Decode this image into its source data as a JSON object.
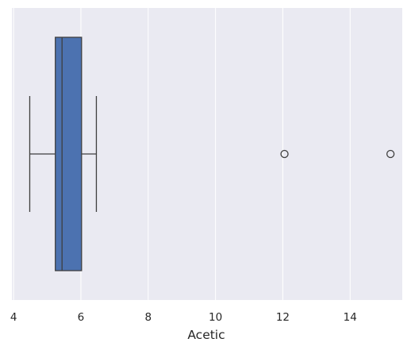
{
  "chart_data": {
    "type": "boxplot",
    "orientation": "horizontal",
    "xlabel": "Acetic",
    "xlim": [
      3.95,
      15.55
    ],
    "xticks": [
      4,
      6,
      8,
      10,
      12,
      14
    ],
    "grid": true,
    "box": {
      "whisker_low": 4.48,
      "q1": 5.24,
      "median": 5.44,
      "q3": 6.02,
      "whisker_high": 6.46,
      "outliers": [
        12.05,
        15.2
      ]
    },
    "colors": {
      "background": "#eaeaf2",
      "grid": "#ffffff",
      "box_fill": "#4c72b0",
      "line": "#3f3f3f",
      "text": "#262626"
    }
  }
}
